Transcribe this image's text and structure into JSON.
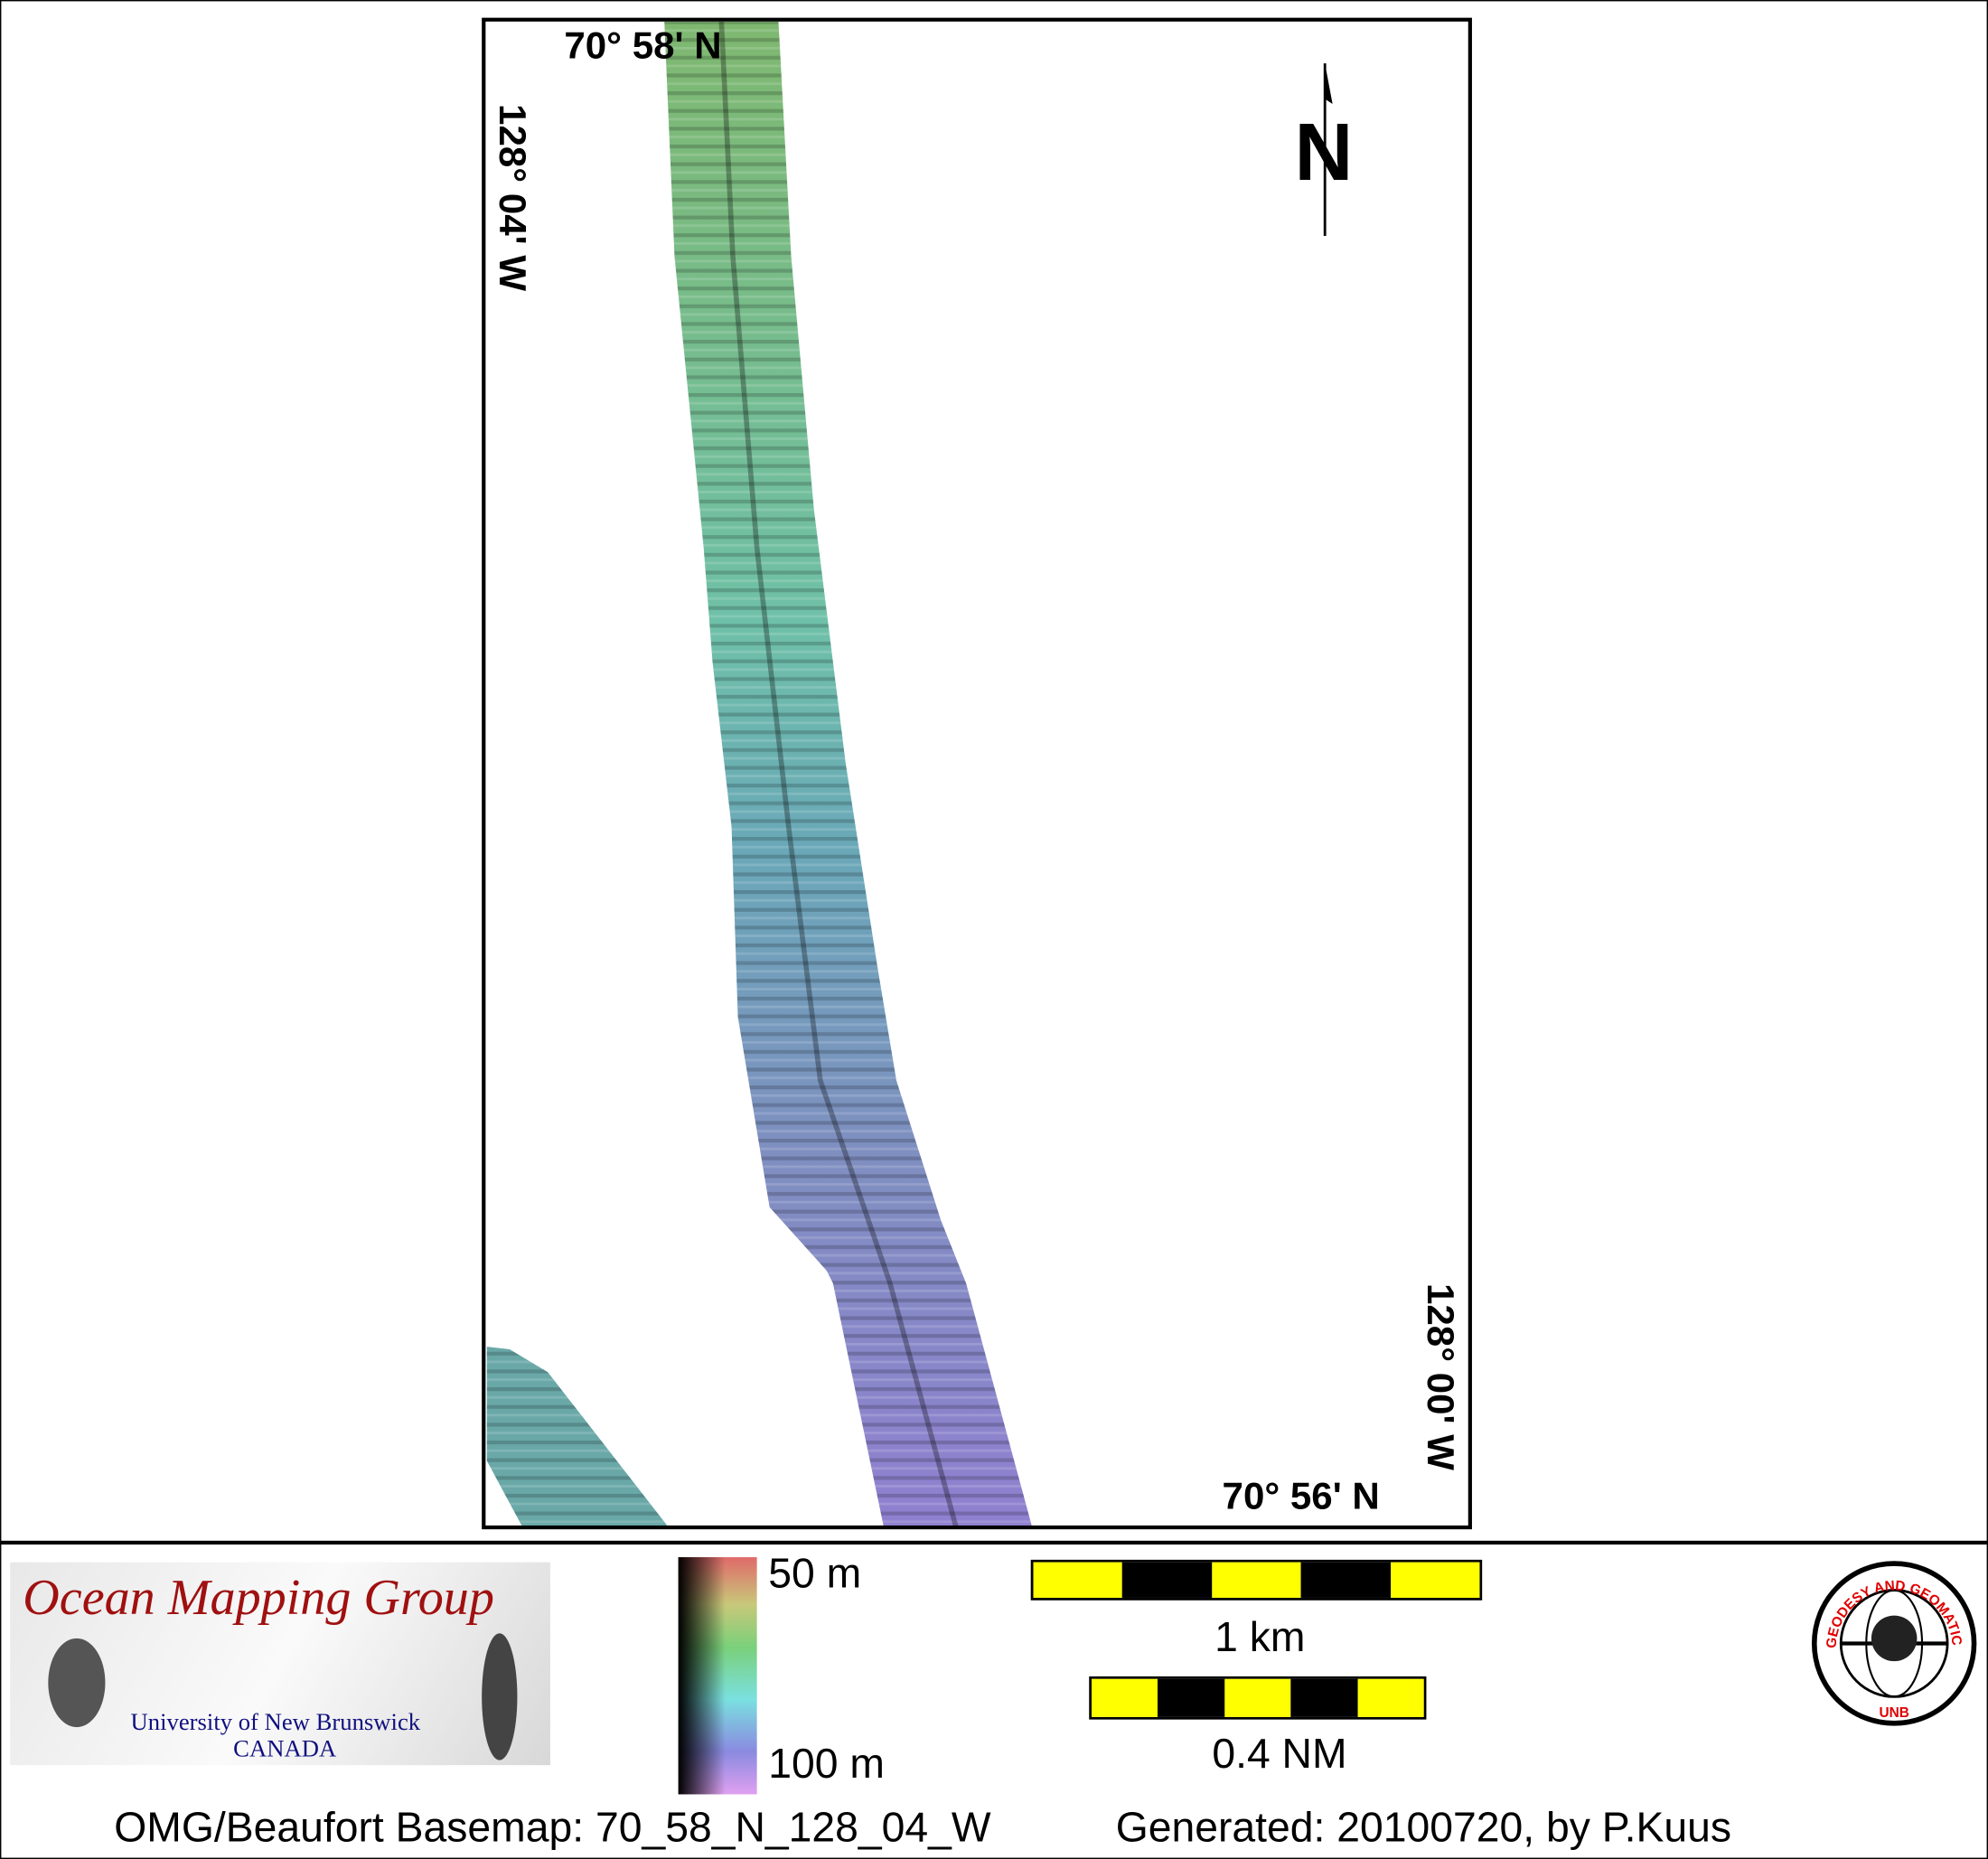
{
  "map": {
    "top_lat_label": "70° 58' N",
    "bottom_lat_label": "70° 56' N",
    "left_lon_label": "128° 04' W",
    "right_lon_label": "128° 00' W",
    "north_label": "N",
    "north_icon": "north-arrow"
  },
  "colorbar": {
    "top_label": "50 m",
    "bottom_label": "100 m",
    "colors": [
      "#e06a6a",
      "#c8c87a",
      "#7ad07a",
      "#7ae0e0",
      "#8a8ae0",
      "#e0a0f0"
    ]
  },
  "scalebars": [
    {
      "label": "1 km",
      "colors": [
        "#ffff00",
        "#000000"
      ]
    },
    {
      "label": "0.4 NM",
      "colors": [
        "#ffff00",
        "#000000"
      ]
    }
  ],
  "logo_omg": {
    "title": "Ocean Mapping Group",
    "line1": "University of New Brunswick",
    "line2": "CANADA"
  },
  "logo_unb": {
    "ring_text": "GEODESY AND GEOMATICS ENGINEERING",
    "bottom_text": "UNB"
  },
  "footer": {
    "left": "OMG/Beaufort Basemap: 70_58_N_128_04_W",
    "right": "Generated: 20100720, by P.Kuus"
  }
}
